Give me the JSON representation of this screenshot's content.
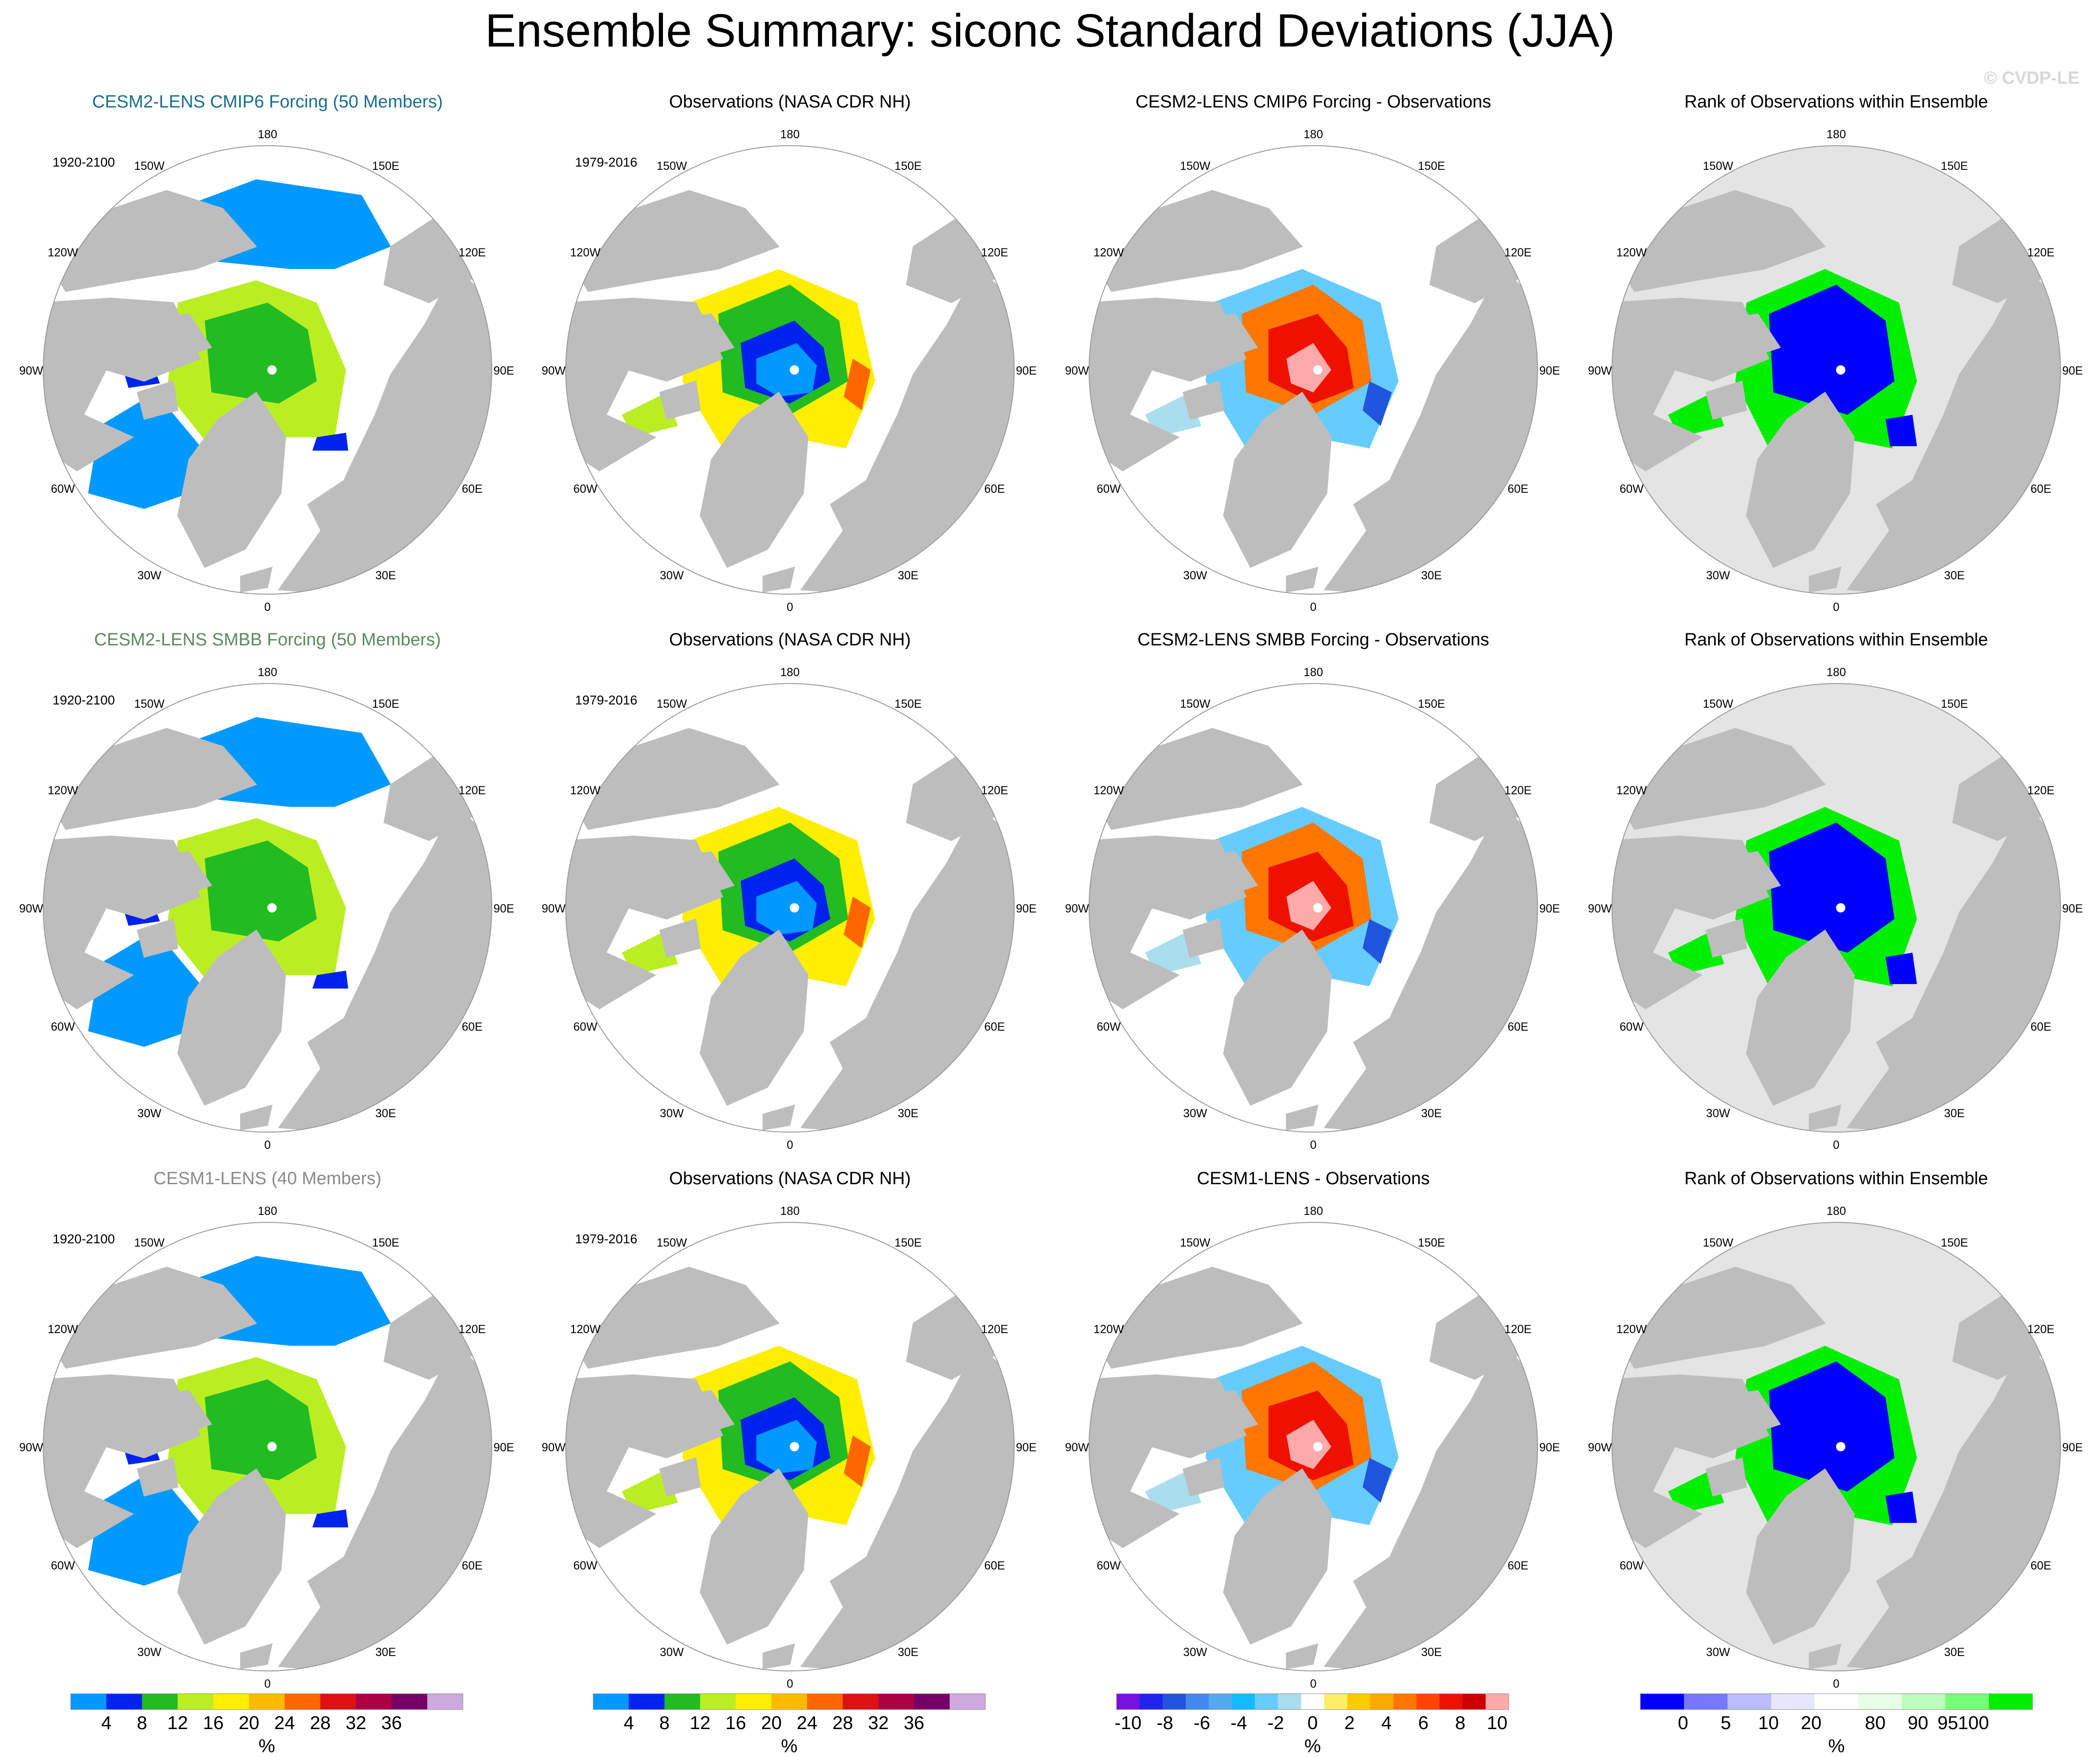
{
  "main_title": "Ensemble Summary: siconc Standard Deviations (JJA)",
  "watermark": "© CVDP-LE",
  "lon_labels": [
    "180",
    "150E",
    "120E",
    "90E",
    "60E",
    "30E",
    "0",
    "30W",
    "60W",
    "90W",
    "120W",
    "150W"
  ],
  "rows": [
    {
      "model_title": "CESM2-LENS CMIP6 Forcing (50 Members)",
      "model_color": "#1a6e8e",
      "model_period": "1920-2100",
      "obs_title": "Observations (NASA CDR NH)",
      "obs_period": "1979-2016",
      "diff_title": "CESM2-LENS CMIP6 Forcing - Observations",
      "rank_title": "Rank of Observations within Ensemble"
    },
    {
      "model_title": "CESM2-LENS SMBB Forcing (50 Members)",
      "model_color": "#5a8a5e",
      "model_period": "1920-2100",
      "obs_title": "Observations (NASA CDR NH)",
      "obs_period": "1979-2016",
      "diff_title": "CESM2-LENS SMBB Forcing - Observations",
      "rank_title": "Rank of Observations within Ensemble"
    },
    {
      "model_title": "CESM1-LENS (40 Members)",
      "model_color": "#8a8a8a",
      "model_period": "1920-2100",
      "obs_title": "Observations (NASA CDR NH)",
      "obs_period": "1979-2016",
      "diff_title": "CESM1-LENS - Observations",
      "rank_title": "Rank of Observations within Ensemble"
    }
  ],
  "colorbars": [
    {
      "name": "stddev",
      "colors": [
        "#0099ff",
        "#0022ee",
        "#22bb22",
        "#bbee22",
        "#ffee00",
        "#ffbb00",
        "#ff6600",
        "#dd1111",
        "#aa0044",
        "#770066",
        "#ccaadd"
      ],
      "labels": [
        "4",
        "8",
        "12",
        "16",
        "20",
        "24",
        "28",
        "32",
        "36"
      ],
      "unit": "%"
    },
    {
      "name": "stddev-obs",
      "colors": [
        "#0099ff",
        "#0022ee",
        "#22bb22",
        "#bbee22",
        "#ffee00",
        "#ffbb00",
        "#ff6600",
        "#dd1111",
        "#aa0044",
        "#770066",
        "#ccaadd"
      ],
      "labels": [
        "4",
        "8",
        "12",
        "16",
        "20",
        "24",
        "28",
        "32",
        "36"
      ],
      "unit": "%"
    },
    {
      "name": "difference",
      "colors": [
        "#7711dd",
        "#2222ee",
        "#2255dd",
        "#4488ee",
        "#55aaee",
        "#11bbff",
        "#66ccff",
        "#aaddee",
        "#ffffff",
        "#ffee66",
        "#ffcc00",
        "#ffaa00",
        "#ff7700",
        "#ff4400",
        "#ee1100",
        "#cc0000",
        "#ffaaaa"
      ],
      "labels": [
        "-10",
        "-8",
        "-6",
        "-4",
        "-2",
        "0",
        "2",
        "4",
        "6",
        "8",
        "10"
      ],
      "unit": "%"
    },
    {
      "name": "rank",
      "colors": [
        "#0000ff",
        "#7777ff",
        "#bbbbff",
        "#e6e6ff",
        "#ffffff",
        "#e6ffe6",
        "#bbffbb",
        "#77ff77",
        "#00ee00"
      ],
      "labels": [
        "0",
        "5",
        "10",
        "20",
        "80",
        "90",
        "95",
        "100"
      ],
      "unit": "%"
    }
  ],
  "chart_data": {
    "type": "heatmap",
    "title": "Ensemble Summary: siconc Standard Deviations (JJA)",
    "variable": "siconc",
    "season": "JJA",
    "units": "%",
    "projection": "north polar stereographic",
    "layout": "3 rows x 4 columns",
    "columns": [
      "model ensemble std dev",
      "observations std dev",
      "model - observations",
      "rank of observations within ensemble"
    ],
    "levels_stddev": [
      4,
      8,
      12,
      16,
      20,
      24,
      28,
      32,
      36
    ],
    "levels_difference": [
      -10,
      -8,
      -6,
      -4,
      -2,
      0,
      2,
      4,
      6,
      8,
      10
    ],
    "levels_rank": [
      0,
      5,
      10,
      20,
      80,
      90,
      95,
      100
    ]
  }
}
